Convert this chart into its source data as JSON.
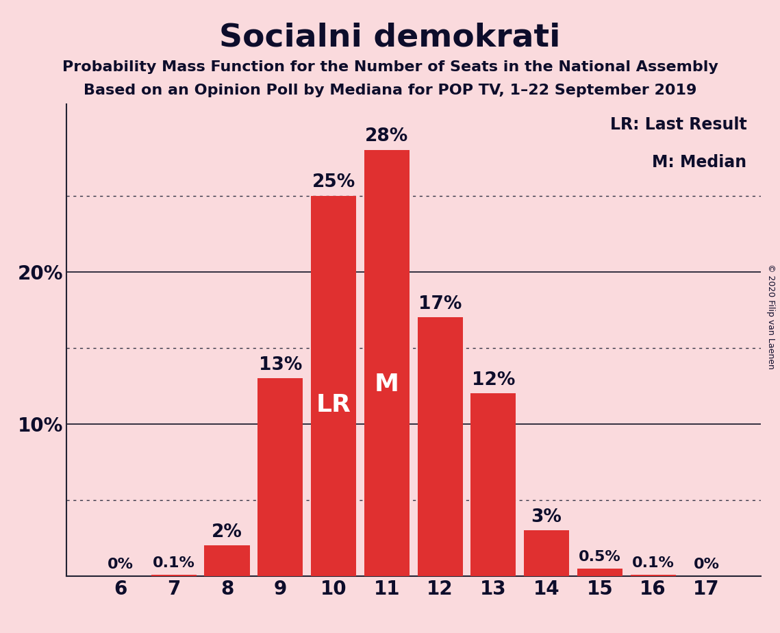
{
  "title": "Socialni demokrati",
  "subtitle1": "Probability Mass Function for the Number of Seats in the National Assembly",
  "subtitle2": "Based on an Opinion Poll by Mediana for POP TV, 1–22 September 2019",
  "copyright": "© 2020 Filip van Laenen",
  "categories": [
    6,
    7,
    8,
    9,
    10,
    11,
    12,
    13,
    14,
    15,
    16,
    17
  ],
  "values": [
    0.0,
    0.1,
    2.0,
    13.0,
    25.0,
    28.0,
    17.0,
    12.0,
    3.0,
    0.5,
    0.1,
    0.0
  ],
  "labels": [
    "0%",
    "0.1%",
    "2%",
    "13%",
    "25%",
    "28%",
    "17%",
    "12%",
    "3%",
    "0.5%",
    "0.1%",
    "0%"
  ],
  "bar_color": "#e03030",
  "background_color": "#fadadd",
  "text_color": "#0d0d2b",
  "label_color_outside": "#0d0d2b",
  "lr_bar": 10,
  "median_bar": 11,
  "lr_label": "LR",
  "median_label": "M",
  "legend_lr": "LR: Last Result",
  "legend_m": "M: Median",
  "ylim": [
    0,
    31
  ],
  "dotted_lines": [
    5,
    15,
    25
  ],
  "solid_lines": [
    10,
    20
  ],
  "ytick_positions": [
    10,
    20
  ],
  "ytick_labels": [
    "10%",
    "20%"
  ],
  "title_fontsize": 34,
  "subtitle_fontsize": 16,
  "label_fontsize_large": 19,
  "label_fontsize_small": 16,
  "tick_fontsize": 20,
  "legend_fontsize": 17,
  "copyright_fontsize": 9
}
